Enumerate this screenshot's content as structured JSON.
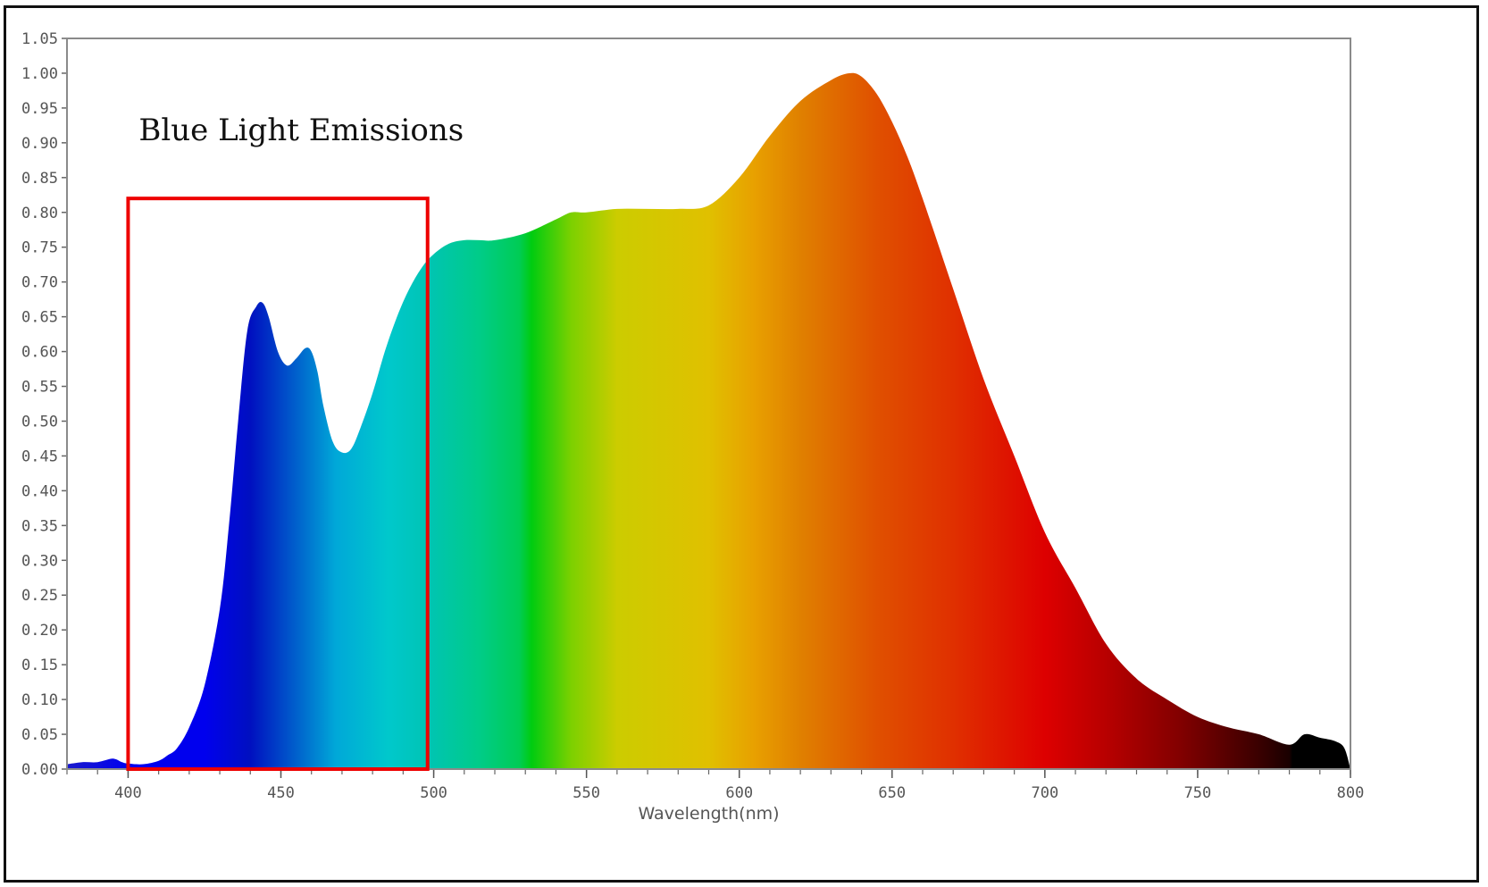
{
  "chart_data": {
    "type": "area",
    "title": "",
    "xlabel": "Wavelength(nm)",
    "ylabel": "",
    "xlim": [
      380,
      800
    ],
    "ylim": [
      0,
      1.05
    ],
    "x_ticks": [
      400,
      450,
      500,
      550,
      600,
      650,
      700,
      750,
      800
    ],
    "y_ticks": [
      0.0,
      0.05,
      0.1,
      0.15,
      0.2,
      0.25,
      0.3,
      0.35,
      0.4,
      0.45,
      0.5,
      0.55,
      0.6,
      0.65,
      0.7,
      0.75,
      0.8,
      0.85,
      0.9,
      0.95,
      1.0,
      1.05
    ],
    "grid": false,
    "series": [
      {
        "name": "",
        "x": [
          380,
          385,
          390,
          395,
          398,
          400,
          405,
          410,
          413,
          416,
          420,
          425,
          430,
          433,
          436,
          439,
          442,
          444,
          446,
          449,
          452,
          455,
          458,
          460,
          462,
          464,
          467,
          470,
          473,
          476,
          480,
          484,
          488,
          492,
          496,
          500,
          505,
          510,
          515,
          520,
          530,
          540,
          545,
          550,
          560,
          570,
          580,
          590,
          600,
          610,
          620,
          630,
          636,
          640,
          645,
          650,
          655,
          660,
          670,
          680,
          690,
          700,
          710,
          720,
          730,
          740,
          750,
          760,
          770,
          780,
          785,
          790,
          795,
          798,
          800
        ],
        "values": [
          0.007,
          0.01,
          0.01,
          0.015,
          0.01,
          0.008,
          0.007,
          0.012,
          0.02,
          0.03,
          0.06,
          0.12,
          0.23,
          0.35,
          0.5,
          0.63,
          0.665,
          0.67,
          0.65,
          0.6,
          0.58,
          0.59,
          0.605,
          0.6,
          0.57,
          0.52,
          0.47,
          0.455,
          0.46,
          0.49,
          0.54,
          0.6,
          0.65,
          0.69,
          0.72,
          0.74,
          0.755,
          0.76,
          0.76,
          0.76,
          0.77,
          0.79,
          0.8,
          0.8,
          0.805,
          0.805,
          0.805,
          0.81,
          0.85,
          0.91,
          0.96,
          0.99,
          1.0,
          0.995,
          0.97,
          0.93,
          0.88,
          0.82,
          0.69,
          0.56,
          0.45,
          0.34,
          0.26,
          0.18,
          0.13,
          0.1,
          0.075,
          0.06,
          0.05,
          0.035,
          0.05,
          0.045,
          0.04,
          0.03,
          0.0
        ]
      }
    ],
    "annotations": [
      {
        "text": "Blue Light Emissions",
        "box_x": [
          400,
          498
        ],
        "box_y": [
          0.0,
          0.82
        ],
        "color": "#ee0000"
      }
    ]
  }
}
